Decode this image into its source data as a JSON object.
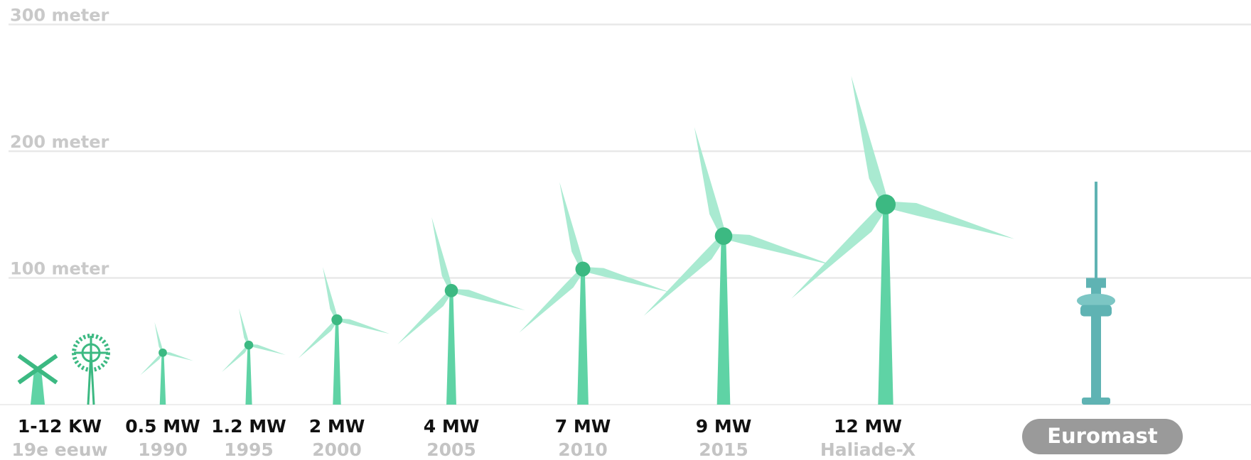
{
  "chart_data": {
    "type": "turbine",
    "categories": [
      "1-12 KW",
      "0.5 MW",
      "1.2 MW",
      "2 MW",
      "4 MW",
      "7 MW",
      "9 MW",
      "12 MW"
    ],
    "sublabels": [
      "19e eeuw",
      "1990",
      "1995",
      "2000",
      "2005",
      "2010",
      "2015",
      "Haliade-X"
    ],
    "hub_heights": [
      28,
      41,
      47,
      67,
      90,
      107,
      133,
      158
    ],
    "tip_heights": [
      43,
      66,
      77,
      110,
      150,
      178,
      222,
      263
    ],
    "landmark": {
      "label": "Euromast",
      "height": 176
    },
    "ylim": [
      0,
      300
    ],
    "yticks": [
      {
        "value": 100,
        "label": "100 meter"
      },
      {
        "value": 200,
        "label": "200 meter"
      },
      {
        "value": 300,
        "label": "300 meter"
      }
    ],
    "grid": true,
    "tower_color": "#5fd3a5",
    "blade_color": "#a9ead1",
    "hub_color": "#3cb982",
    "landmark_color": "#5fb3b3"
  }
}
